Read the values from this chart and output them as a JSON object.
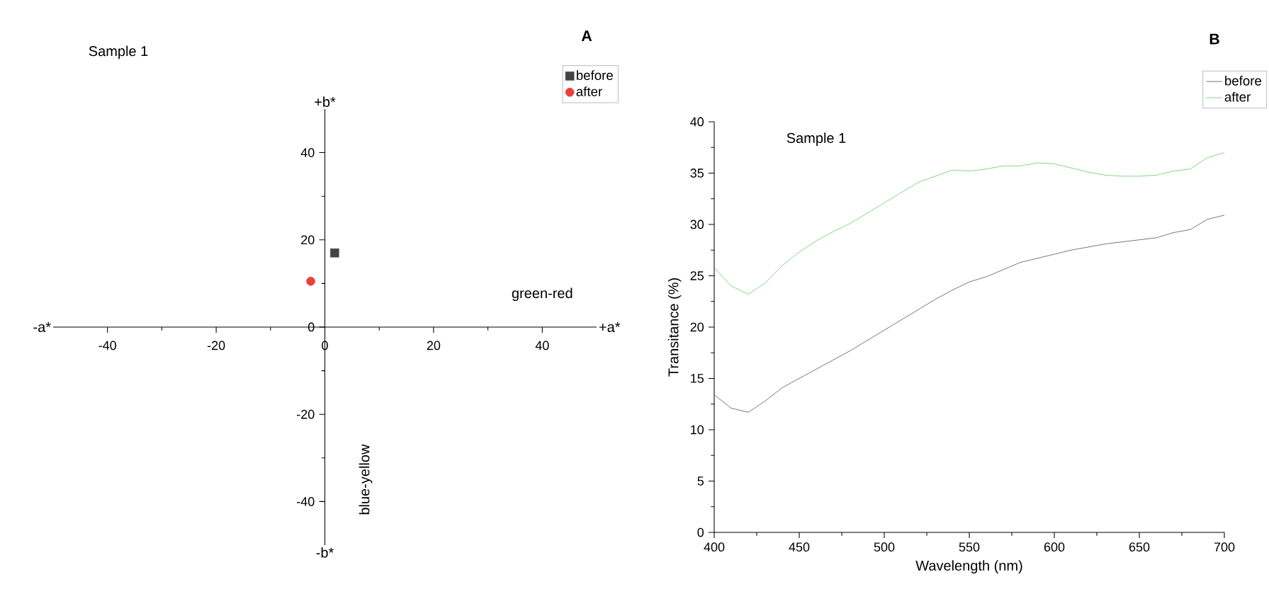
{
  "chart_data": [
    {
      "type": "scatter",
      "title": "A",
      "xlim": [
        -50,
        50
      ],
      "ylim": [
        -50,
        50
      ],
      "xticks": [
        -40,
        -20,
        0,
        20,
        40
      ],
      "yticks": [
        -40,
        -20,
        0,
        20,
        40
      ],
      "legend": "top right",
      "annotations": [
        "Sample 1",
        "+b*",
        "-b*",
        "-a*",
        "+a*",
        "green-red",
        "blue-yellow"
      ],
      "series": [
        {
          "name": "before",
          "color": "#444444",
          "marker": "square",
          "x": [
            1.8
          ],
          "values": [
            17
          ]
        },
        {
          "name": "after",
          "color": "#e8413c",
          "marker": "circle",
          "x": [
            -2.6
          ],
          "values": [
            10.5
          ]
        }
      ]
    },
    {
      "type": "line",
      "title": "B",
      "xlabel": "Wavelength (nm)",
      "ylabel": "Transitance (%)",
      "annotations": [
        "Sample 1"
      ],
      "x": [
        400,
        410,
        420,
        430,
        440,
        450,
        460,
        470,
        480,
        490,
        500,
        510,
        520,
        530,
        540,
        550,
        560,
        570,
        580,
        590,
        600,
        610,
        620,
        630,
        640,
        650,
        660,
        670,
        680,
        690,
        700
      ],
      "xlim": [
        400,
        700
      ],
      "ylim": [
        0,
        40
      ],
      "xticks": [
        400,
        450,
        500,
        550,
        600,
        650,
        700
      ],
      "yticks": [
        0,
        5,
        10,
        15,
        20,
        25,
        30,
        35,
        40
      ],
      "legend": "top right",
      "series": [
        {
          "name": "before",
          "color": "#555555",
          "values": [
            13.4,
            12.1,
            11.7,
            12.8,
            14.1,
            15.0,
            15.9,
            16.8,
            17.7,
            18.7,
            19.7,
            20.7,
            21.7,
            22.7,
            23.6,
            24.4,
            24.9,
            25.6,
            26.3,
            26.7,
            27.1,
            27.5,
            27.8,
            28.1,
            28.3,
            28.5,
            28.7,
            29.2,
            29.5,
            30.5,
            30.9
          ]
        },
        {
          "name": "after",
          "color": "#66cc66",
          "values": [
            25.8,
            24.0,
            23.2,
            24.3,
            26.0,
            27.3,
            28.4,
            29.3,
            30.1,
            31.1,
            32.1,
            33.1,
            34.1,
            34.7,
            35.3,
            35.2,
            35.4,
            35.7,
            35.7,
            36.0,
            35.9,
            35.5,
            35.1,
            34.8,
            34.7,
            34.7,
            34.8,
            35.2,
            35.4,
            36.5,
            37.0
          ]
        }
      ]
    }
  ]
}
